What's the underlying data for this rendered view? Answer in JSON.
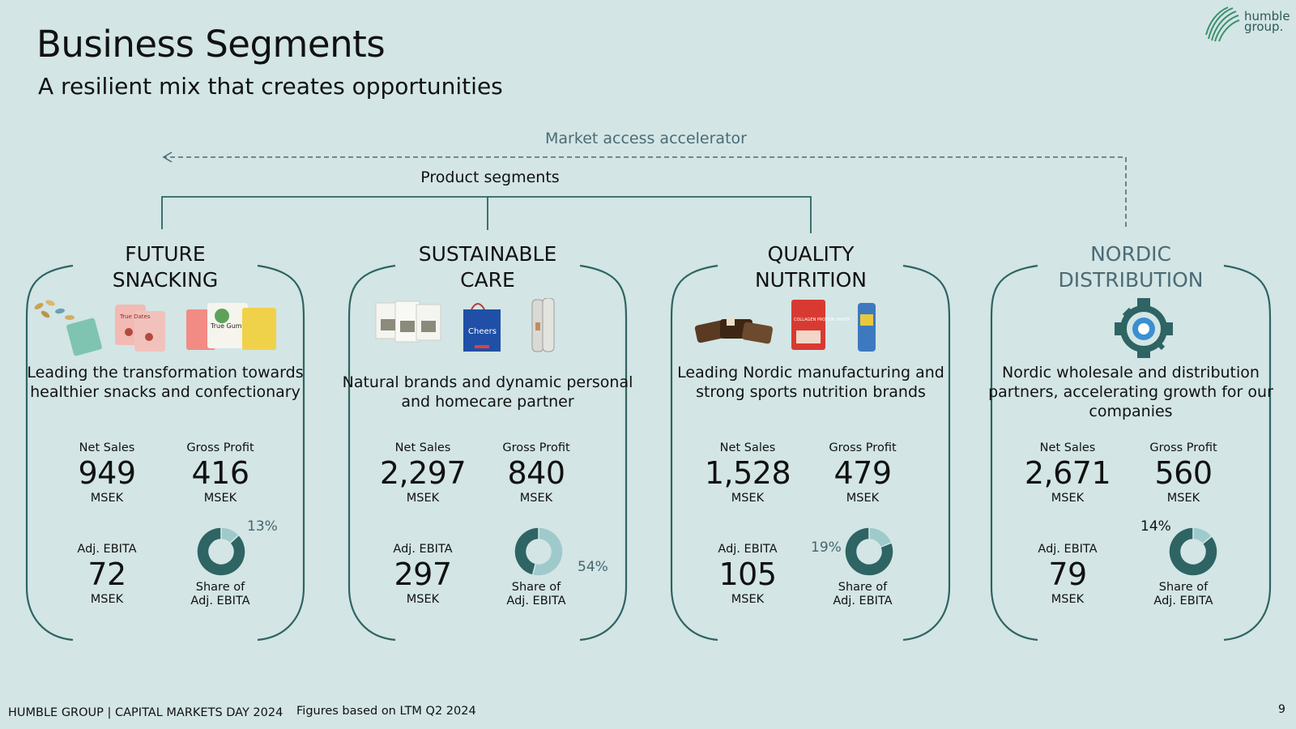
{
  "header": {
    "title": "Business Segments",
    "subtitle": "A resilient mix that creates opportunities",
    "logo_text": "humble group."
  },
  "diagram": {
    "market_label": "Market access accelerator",
    "product_label": "Product segments"
  },
  "segments": [
    {
      "title_line1": "FUTURE",
      "title_line2": "SNACKING",
      "description": "Leading the transformation towards healthier snacks and confectionary",
      "net_sales_label": "Net Sales",
      "net_sales": "949",
      "net_sales_unit": "MSEK",
      "gross_profit_label": "Gross Profit",
      "gross_profit": "416",
      "gross_profit_unit": "MSEK",
      "ebita_label": "Adj. EBITA",
      "ebita": "72",
      "ebita_unit": "MSEK",
      "share_pct": "13%",
      "share_value": 0.13,
      "share_label_1": "Share of",
      "share_label_2": "Adj. EBITA",
      "icon_text_1": "True Dates",
      "icon_text_2": "True Gum"
    },
    {
      "title_line1": "SUSTAINABLE",
      "title_line2": "CARE",
      "description": "Natural brands and dynamic personal and homecare partner",
      "net_sales_label": "Net Sales",
      "net_sales": "2,297",
      "net_sales_unit": "MSEK",
      "gross_profit_label": "Gross Profit",
      "gross_profit": "840",
      "gross_profit_unit": "MSEK",
      "ebita_label": "Adj. EBITA",
      "ebita": "297",
      "ebita_unit": "MSEK",
      "share_pct": "54%",
      "share_value": 0.54,
      "share_label_1": "Share of",
      "share_label_2": "Adj. EBITA",
      "icon_text_1": "Cheers"
    },
    {
      "title_line1": "QUALITY",
      "title_line2": "NUTRITION",
      "description": "Leading Nordic manufacturing and strong sports nutrition brands",
      "net_sales_label": "Net Sales",
      "net_sales": "1,528",
      "net_sales_unit": "MSEK",
      "gross_profit_label": "Gross Profit",
      "gross_profit": "479",
      "gross_profit_unit": "MSEK",
      "ebita_label": "Adj. EBITA",
      "ebita": "105",
      "ebita_unit": "MSEK",
      "share_pct": "19%",
      "share_value": 0.19,
      "share_label_1": "Share of",
      "share_label_2": "Adj. EBITA",
      "icon_text_1": "COLLAGEN PROTEIN WATER"
    },
    {
      "title_line1": "NORDIC",
      "title_line2": "DISTRIBUTION",
      "description": "Nordic wholesale and distribution partners, accelerating growth for our companies",
      "net_sales_label": "Net Sales",
      "net_sales": "2,671",
      "net_sales_unit": "MSEK",
      "gross_profit_label": "Gross Profit",
      "gross_profit": "560",
      "gross_profit_unit": "MSEK",
      "ebita_label": "Adj. EBITA",
      "ebita": "79",
      "ebita_unit": "MSEK",
      "share_pct": "14%",
      "share_value": 0.14,
      "share_label_1": "Share of",
      "share_label_2": "Adj. EBITA"
    }
  ],
  "footer": {
    "left": "HUMBLE GROUP | CAPITAL MARKETS DAY 2024",
    "note": "Figures based on LTM Q2 2024",
    "page": "9"
  },
  "colors": {
    "background": "#d3e5e5",
    "dark_teal": "#2e6463",
    "light_teal": "#9fcacb",
    "nordic_title": "#4c6b75",
    "dashed": "#4c6b75"
  }
}
